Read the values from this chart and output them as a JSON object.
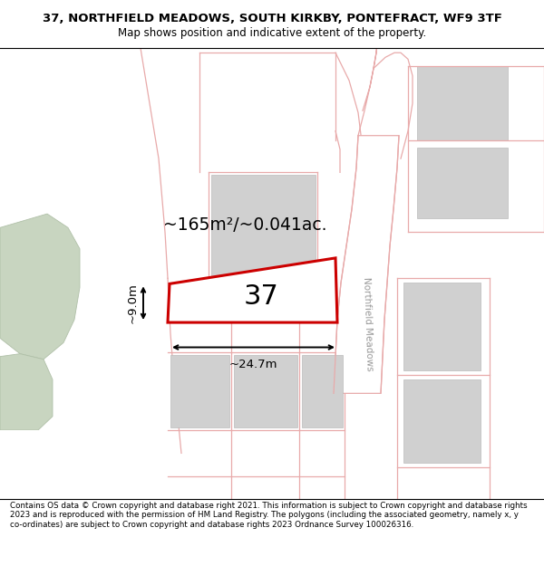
{
  "title_line1": "37, NORTHFIELD MEADOWS, SOUTH KIRKBY, PONTEFRACT, WF9 3TF",
  "title_line2": "Map shows position and indicative extent of the property.",
  "footer_text": "Contains OS data © Crown copyright and database right 2021. This information is subject to Crown copyright and database rights 2023 and is reproduced with the permission of HM Land Registry. The polygons (including the associated geometry, namely x, y co-ordinates) are subject to Crown copyright and database rights 2023 Ordnance Survey 100026316.",
  "area_label": "~165m²/~0.041ac.",
  "number_label": "37",
  "width_label": "~24.7m",
  "height_label": "~9.0m",
  "road_label": "Northfield Meadows",
  "background_color": "#ffffff",
  "map_bg": "#ffffff",
  "parcel_edge_color": "#cc0000",
  "building_fill": "#d0d0d0",
  "building_edge": "#bbbbbb",
  "green_color": "#c8d5c0",
  "green_edge": "#b0c0a8",
  "pink": "#e8aaaa",
  "gray_road": "#c8c8c8",
  "title_fontsize": 9.5,
  "subtitle_fontsize": 8.5,
  "footer_fontsize": 6.3
}
